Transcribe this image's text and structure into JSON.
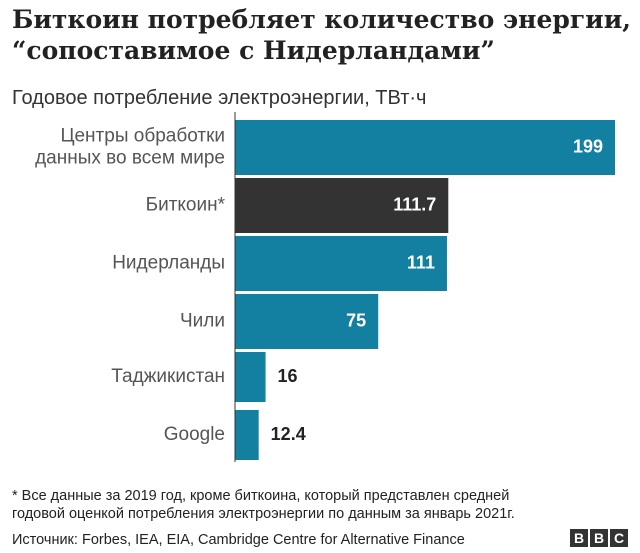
{
  "title": "Биткоин потребляет количество энергии, “сопоставимое с Нидерландами”",
  "subtitle": "Годовое потребление электроэнергии, ТВт·ч",
  "chart_data": {
    "type": "bar",
    "orientation": "horizontal",
    "title": "Биткоин потребляет количество энергии, “сопоставимое с Нидерландами”",
    "subtitle": "Годовое потребление электроэнергии, ТВт·ч",
    "categories": [
      [
        "Центры обработки",
        "данных во всем мире"
      ],
      [
        "Биткоин*"
      ],
      [
        "Нидерланды"
      ],
      [
        "Чили"
      ],
      [
        "Таджикистан"
      ],
      [
        "Google"
      ]
    ],
    "values": [
      199,
      111.7,
      111,
      75,
      16,
      12.4
    ],
    "value_labels": [
      "199",
      "111.7",
      "111",
      "75",
      "16",
      "12.4"
    ],
    "bar_colors": [
      "#1380A1",
      "#333333",
      "#1380A1",
      "#1380A1",
      "#1380A1",
      "#1380A1"
    ],
    "xlim": [
      0,
      199
    ],
    "grid": false,
    "legend": "none"
  },
  "footnote": [
    "* Все данные за 2019 год, кроме биткоина, который представлен средней",
    "годовой оценкой потребления электроэнергии по данным за январь 2021г."
  ],
  "source": "Источник: Forbes, IEA, EIA, Cambridge Centre for Alternative Finance",
  "logo": [
    "B",
    "B",
    "C"
  ]
}
